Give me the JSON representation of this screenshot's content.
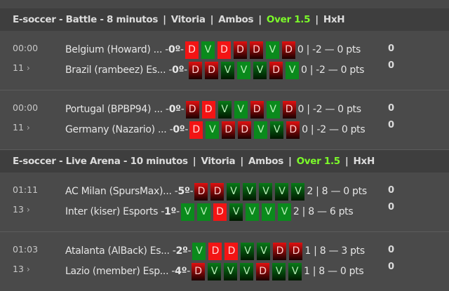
{
  "sections": [
    {
      "title": "E-soccer - Battle - 8 minutos",
      "filters": [
        "Vitoria",
        "Ambos",
        "Over 1.5",
        "HxH"
      ],
      "highlight_color": "#7cfc2a",
      "matches": [
        {
          "time": "00:00",
          "count": "11",
          "teams": [
            {
              "name": "Belgium (Howard) ...",
              "position": "0º",
              "form": [
                [
                  "D",
                  "solid"
                ],
                [
                  "V",
                  "solid"
                ],
                [
                  "D",
                  "solid"
                ],
                [
                  "D",
                  "grad"
                ],
                [
                  "D",
                  "grad"
                ],
                [
                  "V",
                  "solid"
                ],
                [
                  "D",
                  "grad"
                ]
              ],
              "stats": "0 | -2 — 0 pts",
              "extra": "0"
            },
            {
              "name": "Brazil (rambeez) Es...",
              "position": "0º",
              "form": [
                [
                  "D",
                  "grad"
                ],
                [
                  "D",
                  "grad"
                ],
                [
                  "V",
                  "grad"
                ],
                [
                  "V",
                  "solid"
                ],
                [
                  "V",
                  "grad"
                ],
                [
                  "D",
                  "grad"
                ],
                [
                  "V",
                  "solid"
                ]
              ],
              "stats": "0 | -2 — 0 pts",
              "extra": "0"
            }
          ]
        },
        {
          "time": "00:00",
          "count": "11",
          "teams": [
            {
              "name": "Portugal (BPBP94) ...",
              "position": "0º",
              "form": [
                [
                  "D",
                  "grad"
                ],
                [
                  "D",
                  "solid"
                ],
                [
                  "V",
                  "grad"
                ],
                [
                  "V",
                  "solid"
                ],
                [
                  "D",
                  "grad"
                ],
                [
                  "V",
                  "solid"
                ],
                [
                  "D",
                  "grad"
                ]
              ],
              "stats": "0 | -2 — 0 pts",
              "extra": "0"
            },
            {
              "name": "Germany (Nazario) ...",
              "position": "0º",
              "form": [
                [
                  "D",
                  "solid"
                ],
                [
                  "V",
                  "solid"
                ],
                [
                  "D",
                  "grad"
                ],
                [
                  "D",
                  "grad"
                ],
                [
                  "V",
                  "solid"
                ],
                [
                  "V",
                  "grad"
                ],
                [
                  "D",
                  "grad"
                ]
              ],
              "stats": "0 | -2 — 0 pts",
              "extra": "0"
            }
          ]
        }
      ]
    },
    {
      "title": "E-soccer - Live Arena - 10 minutos",
      "filters": [
        "Vitoria",
        "Ambos",
        "Over 1.5",
        "HxH"
      ],
      "highlight_color": "#7cfc2a",
      "matches": [
        {
          "time": "01:11",
          "count": "13",
          "teams": [
            {
              "name": "AC Milan (SpursMax)...",
              "position": "5º",
              "form": [
                [
                  "D",
                  "grad"
                ],
                [
                  "D",
                  "grad"
                ],
                [
                  "V",
                  "grad"
                ],
                [
                  "V",
                  "grad"
                ],
                [
                  "V",
                  "grad"
                ],
                [
                  "V",
                  "grad"
                ],
                [
                  "V",
                  "grad"
                ]
              ],
              "stats": "2 | 8 — 0 pts",
              "extra": "0"
            },
            {
              "name": "Inter (kiser) Esports",
              "position": "1º",
              "form": [
                [
                  "V",
                  "solid"
                ],
                [
                  "V",
                  "solid"
                ],
                [
                  "D",
                  "solid"
                ],
                [
                  "V",
                  "grad"
                ],
                [
                  "V",
                  "solid"
                ],
                [
                  "V",
                  "solid"
                ],
                [
                  "V",
                  "solid"
                ]
              ],
              "stats": "2 | 8 — 6 pts",
              "extra": "0"
            }
          ]
        },
        {
          "time": "01:03",
          "count": "13",
          "teams": [
            {
              "name": "Atalanta (AlBack) Es...",
              "position": "2º",
              "form": [
                [
                  "V",
                  "solid"
                ],
                [
                  "D",
                  "solid"
                ],
                [
                  "D",
                  "solid"
                ],
                [
                  "V",
                  "grad"
                ],
                [
                  "V",
                  "grad"
                ],
                [
                  "D",
                  "grad"
                ],
                [
                  "D",
                  "grad"
                ]
              ],
              "stats": "1 | 8 — 3 pts",
              "extra": "0"
            },
            {
              "name": "Lazio (member) Esp...",
              "position": "4º",
              "form": [
                [
                  "D",
                  "grad"
                ],
                [
                  "V",
                  "grad"
                ],
                [
                  "V",
                  "grad"
                ],
                [
                  "V",
                  "grad"
                ],
                [
                  "D",
                  "grad"
                ],
                [
                  "V",
                  "grad"
                ],
                [
                  "V",
                  "grad"
                ]
              ],
              "stats": "1 | 8 — 0 pts",
              "extra": "0"
            }
          ]
        }
      ]
    }
  ]
}
